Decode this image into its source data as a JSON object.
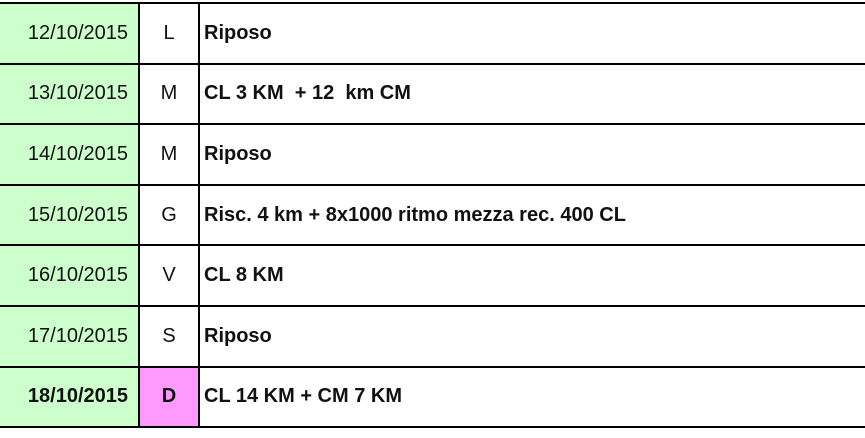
{
  "colors": {
    "date_bg": "#ccffcc",
    "highlight_day_bg": "#ff99ff"
  },
  "rows": [
    {
      "date": "12/10/2015",
      "day": "L",
      "workout": "Riposo"
    },
    {
      "date": "13/10/2015",
      "day": "M",
      "workout": "CL 3 KM  + 12  km CM"
    },
    {
      "date": "14/10/2015",
      "day": "M",
      "workout": "Riposo"
    },
    {
      "date": "15/10/2015",
      "day": "G",
      "workout": "Risc. 4 km + 8x1000 ritmo mezza rec. 400 CL"
    },
    {
      "date": "16/10/2015",
      "day": "V",
      "workout": "CL 8 KM"
    },
    {
      "date": "17/10/2015",
      "day": "S",
      "workout": "Riposo"
    },
    {
      "date": "18/10/2015",
      "day": "D",
      "workout": "CL 14 KM + CM 7 KM",
      "highlighted": true
    }
  ]
}
